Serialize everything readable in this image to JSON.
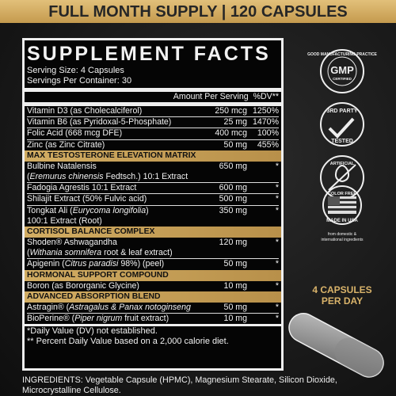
{
  "banner": "FULL MONTH SUPPLY | 120 CAPSULES",
  "facts": {
    "title": "SUPPLEMENT FACTS",
    "serving_size": "Serving Size: 4 Capsules",
    "servings": "Servings Per Container: 30",
    "amount_header": "Amount Per Serving",
    "dv_header": "%DV**",
    "vitamins": [
      {
        "name": "Vitamin D3 (as Cholecalciferol)",
        "amount": "250 mcg",
        "dv": "1250%"
      },
      {
        "name": "Vitamin B6 (as Pyridoxal-5-Phosphate)",
        "amount": "25 mg",
        "dv": "1470%"
      },
      {
        "name": "Folic Acid (668 mcg DFE)",
        "amount": "400 mcg",
        "dv": "100%"
      },
      {
        "name": "Zinc (as Zinc Citrate)",
        "amount": "50 mg",
        "dv": "455%"
      }
    ],
    "sections": [
      {
        "heading": "MAX TESTOSTERONE ELEVATION MATRIX",
        "items": [
          {
            "lines": [
              [
                {
                  "text": "Bulbine Natalensis"
                }
              ],
              [
                {
                  "text": "(",
                  "italic": false
                },
                {
                  "text": "Eremurus chinensis",
                  "italic": true
                },
                {
                  "text": " Fedtsch.) 10:1 Extract"
                }
              ]
            ],
            "amount": "650 mg",
            "dv": "*"
          },
          {
            "lines": [
              [
                {
                  "text": "Fadogia Agrestis 10:1 Extract"
                }
              ]
            ],
            "amount": "600 mg",
            "dv": "*"
          },
          {
            "lines": [
              [
                {
                  "text": "Shilajit Extract (50% Fulvic acid)"
                }
              ]
            ],
            "amount": "500 mg",
            "dv": "*"
          },
          {
            "lines": [
              [
                {
                  "text": "Tongkat Ali ("
                },
                {
                  "text": "Eurycoma longifolia",
                  "italic": true
                },
                {
                  "text": ")"
                }
              ],
              [
                {
                  "text": "100:1 Extract (Root)"
                }
              ]
            ],
            "amount": "350 mg",
            "dv": "*"
          }
        ]
      },
      {
        "heading": "CORTISOL BALANCE COMPLEX",
        "items": [
          {
            "lines": [
              [
                {
                  "text": "Shoden® Ashwagandha"
                }
              ],
              [
                {
                  "text": "(",
                  "italic": false
                },
                {
                  "text": "Withania somnifera",
                  "italic": true
                },
                {
                  "text": " root & leaf extract)"
                }
              ]
            ],
            "amount": "120 mg",
            "dv": "*"
          },
          {
            "lines": [
              [
                {
                  "text": "Apigenin ("
                },
                {
                  "text": "Citrus paradisi",
                  "italic": true
                },
                {
                  "text": " 98%) (peel)"
                }
              ]
            ],
            "amount": "50 mg",
            "dv": "*"
          }
        ]
      },
      {
        "heading": "HORMONAL SUPPORT COMPOUND",
        "items": [
          {
            "lines": [
              [
                {
                  "text": "Boron (as Bororganic Glycine)"
                }
              ]
            ],
            "amount": "10 mg",
            "dv": "*"
          }
        ]
      },
      {
        "heading": "ADVANCED ABSORPTION BLEND",
        "items": [
          {
            "lines": [
              [
                {
                  "text": "Astragin® ("
                },
                {
                  "text": "Astragalus & Panax notoginseng",
                  "italic": true
                },
                {
                  "text": " root)"
                }
              ]
            ],
            "amount": "50 mg",
            "dv": "*"
          },
          {
            "lines": [
              [
                {
                  "text": "BioPerine® ("
                },
                {
                  "text": "Piper nigrum",
                  "italic": true
                },
                {
                  "text": " fruit extract)"
                }
              ]
            ],
            "amount": "10 mg",
            "dv": "*"
          }
        ]
      }
    ],
    "footnotes": [
      "*Daily Value (DV) not established.",
      "** Percent Daily Value based on a 2,000 calorie diet."
    ]
  },
  "badges": {
    "gmp": {
      "ring": "GOOD MANUFACTURING PRACTICE",
      "main": "GMP",
      "sub": "CERTIFIED"
    },
    "tested": {
      "top": "3RD PARTY",
      "bottom": "TESTED"
    },
    "color": {
      "top": "ARTIFICIAL",
      "bottom": "COLOR FREE"
    },
    "usa": {
      "label": "MADE IN USA",
      "note_1": "from domestic &",
      "note_2": "international ingredients"
    }
  },
  "callout": {
    "line_1": "4 CAPSULES",
    "line_2": "PER DAY"
  },
  "ingredients": "INGREDIENTS: Vegetable Capsule (HPMC), Magnesium Stearate, Silicon Dioxide, Microcrystalline Cellulose."
}
